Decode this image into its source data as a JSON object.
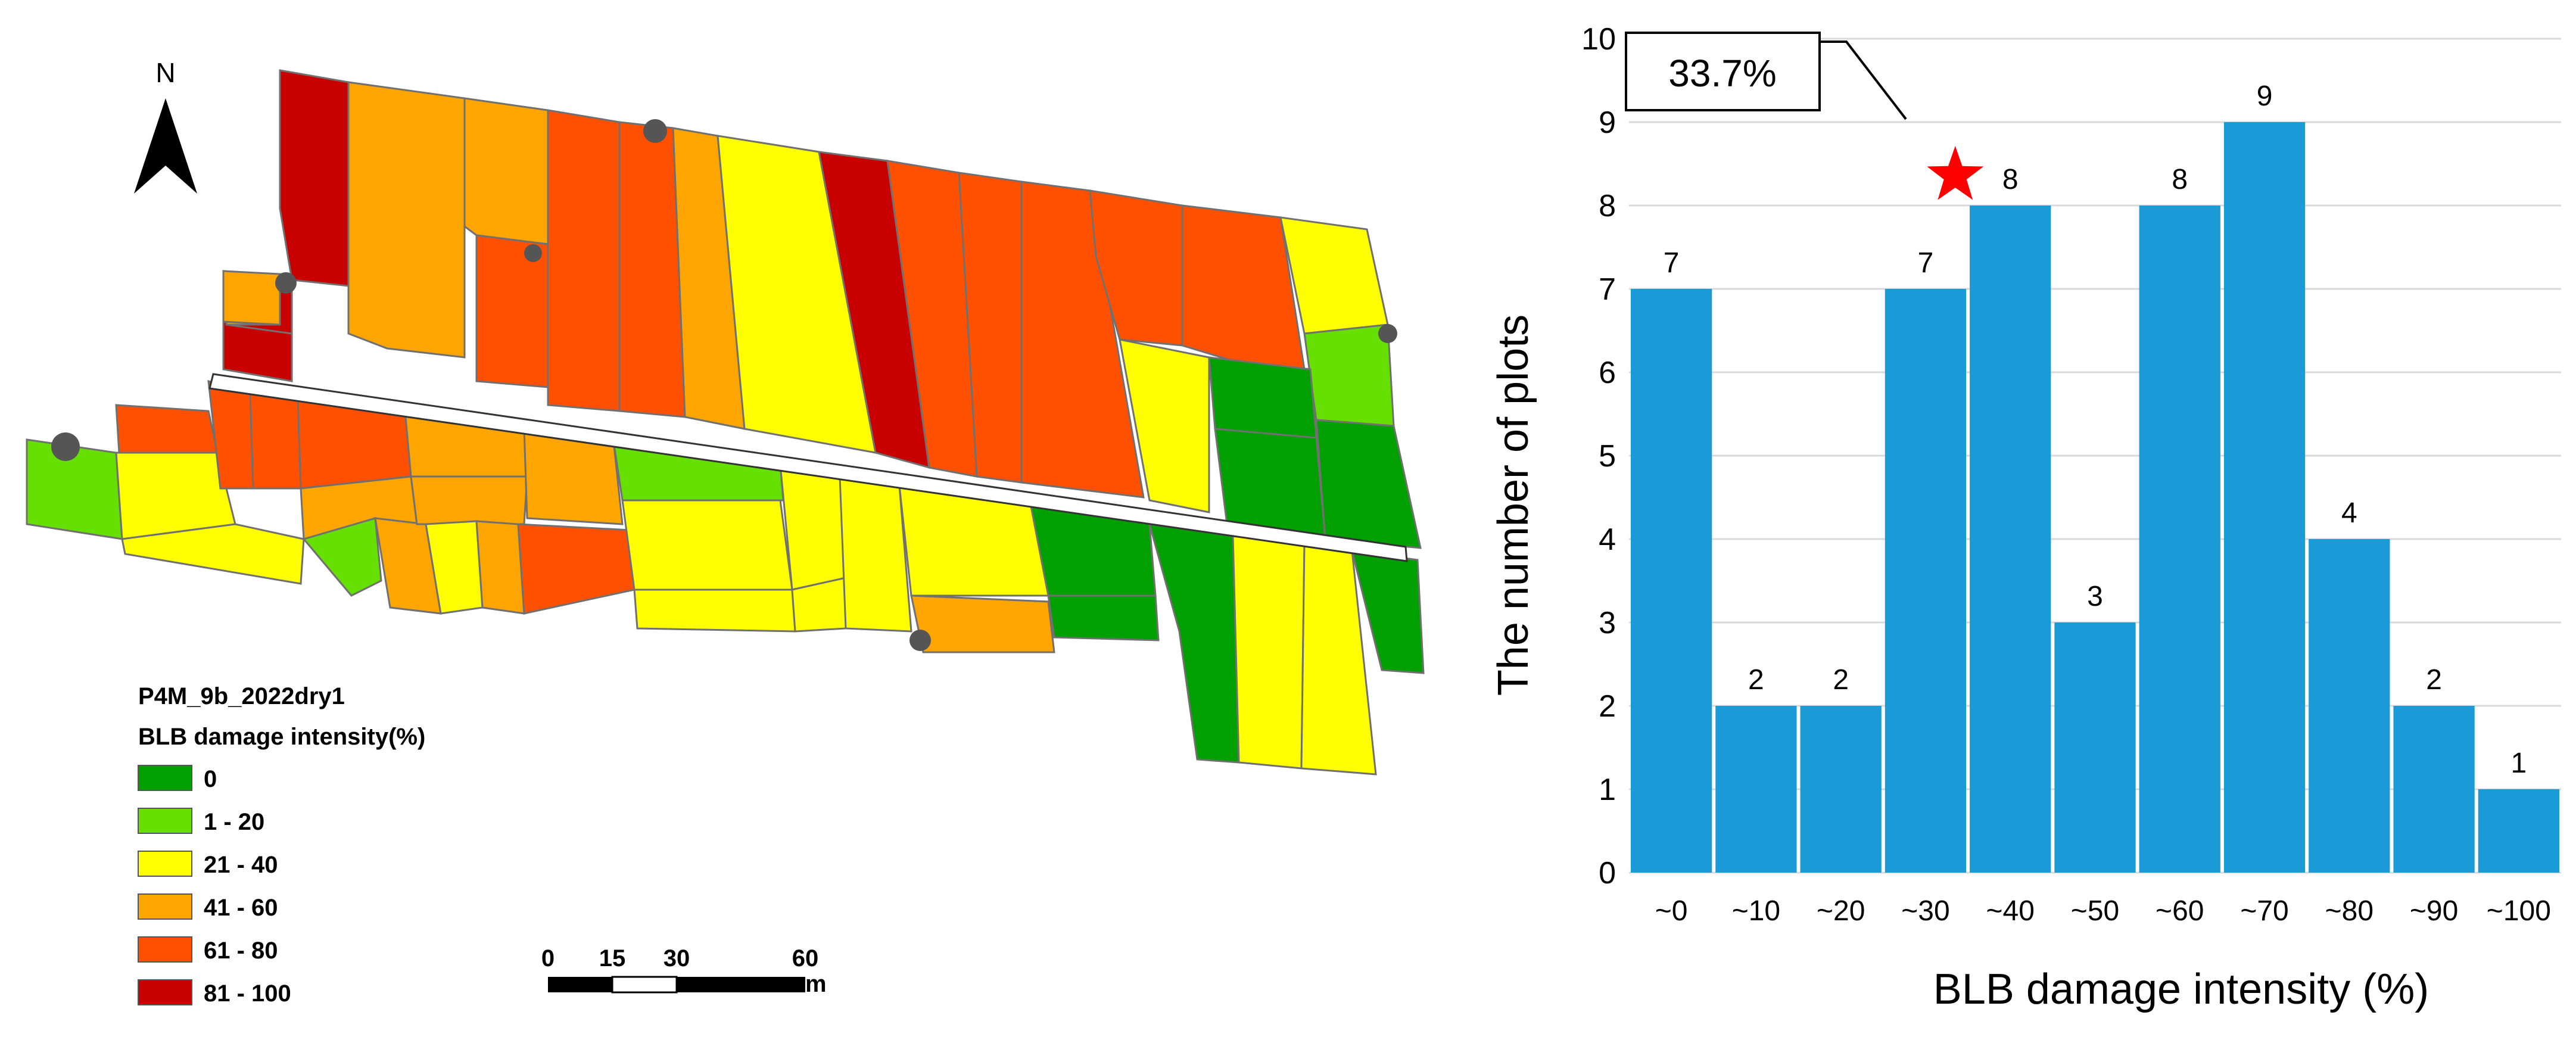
{
  "map": {
    "north_label": "N",
    "legend": {
      "title": "P4M_9b_2022dry1",
      "subtitle": "BLB damage intensity(%)",
      "classes": [
        {
          "label": "0",
          "color": "#00a000"
        },
        {
          "label": "1 - 20",
          "color": "#66e000"
        },
        {
          "label": "21 - 40",
          "color": "#ffff00"
        },
        {
          "label": "41 - 60",
          "color": "#ffa500"
        },
        {
          "label": "61 - 80",
          "color": "#ff5000"
        },
        {
          "label": "81 - 100",
          "color": "#c80000"
        }
      ]
    },
    "scale_bar": {
      "ticks": [
        "0",
        "15",
        "30",
        "60"
      ],
      "unit": "m"
    }
  },
  "chart_data": {
    "type": "bar",
    "categories": [
      "~0",
      "~10",
      "~20",
      "~30",
      "~40",
      "~50",
      "~60",
      "~70",
      "~80",
      "~90",
      "~100"
    ],
    "values": [
      7,
      2,
      2,
      7,
      8,
      3,
      8,
      9,
      4,
      2,
      1
    ],
    "xlabel": "BLB damage intensity (%)",
    "ylabel": "The number of plots",
    "ylim": [
      0,
      10
    ],
    "yticks": [
      0,
      1,
      2,
      3,
      4,
      5,
      6,
      7,
      8,
      9,
      10
    ],
    "grid": true,
    "bar_color": "#1a9ad7",
    "annotation": {
      "text": "33.7%",
      "marker": "star",
      "marker_color": "#ff0000",
      "category": "~30"
    }
  }
}
